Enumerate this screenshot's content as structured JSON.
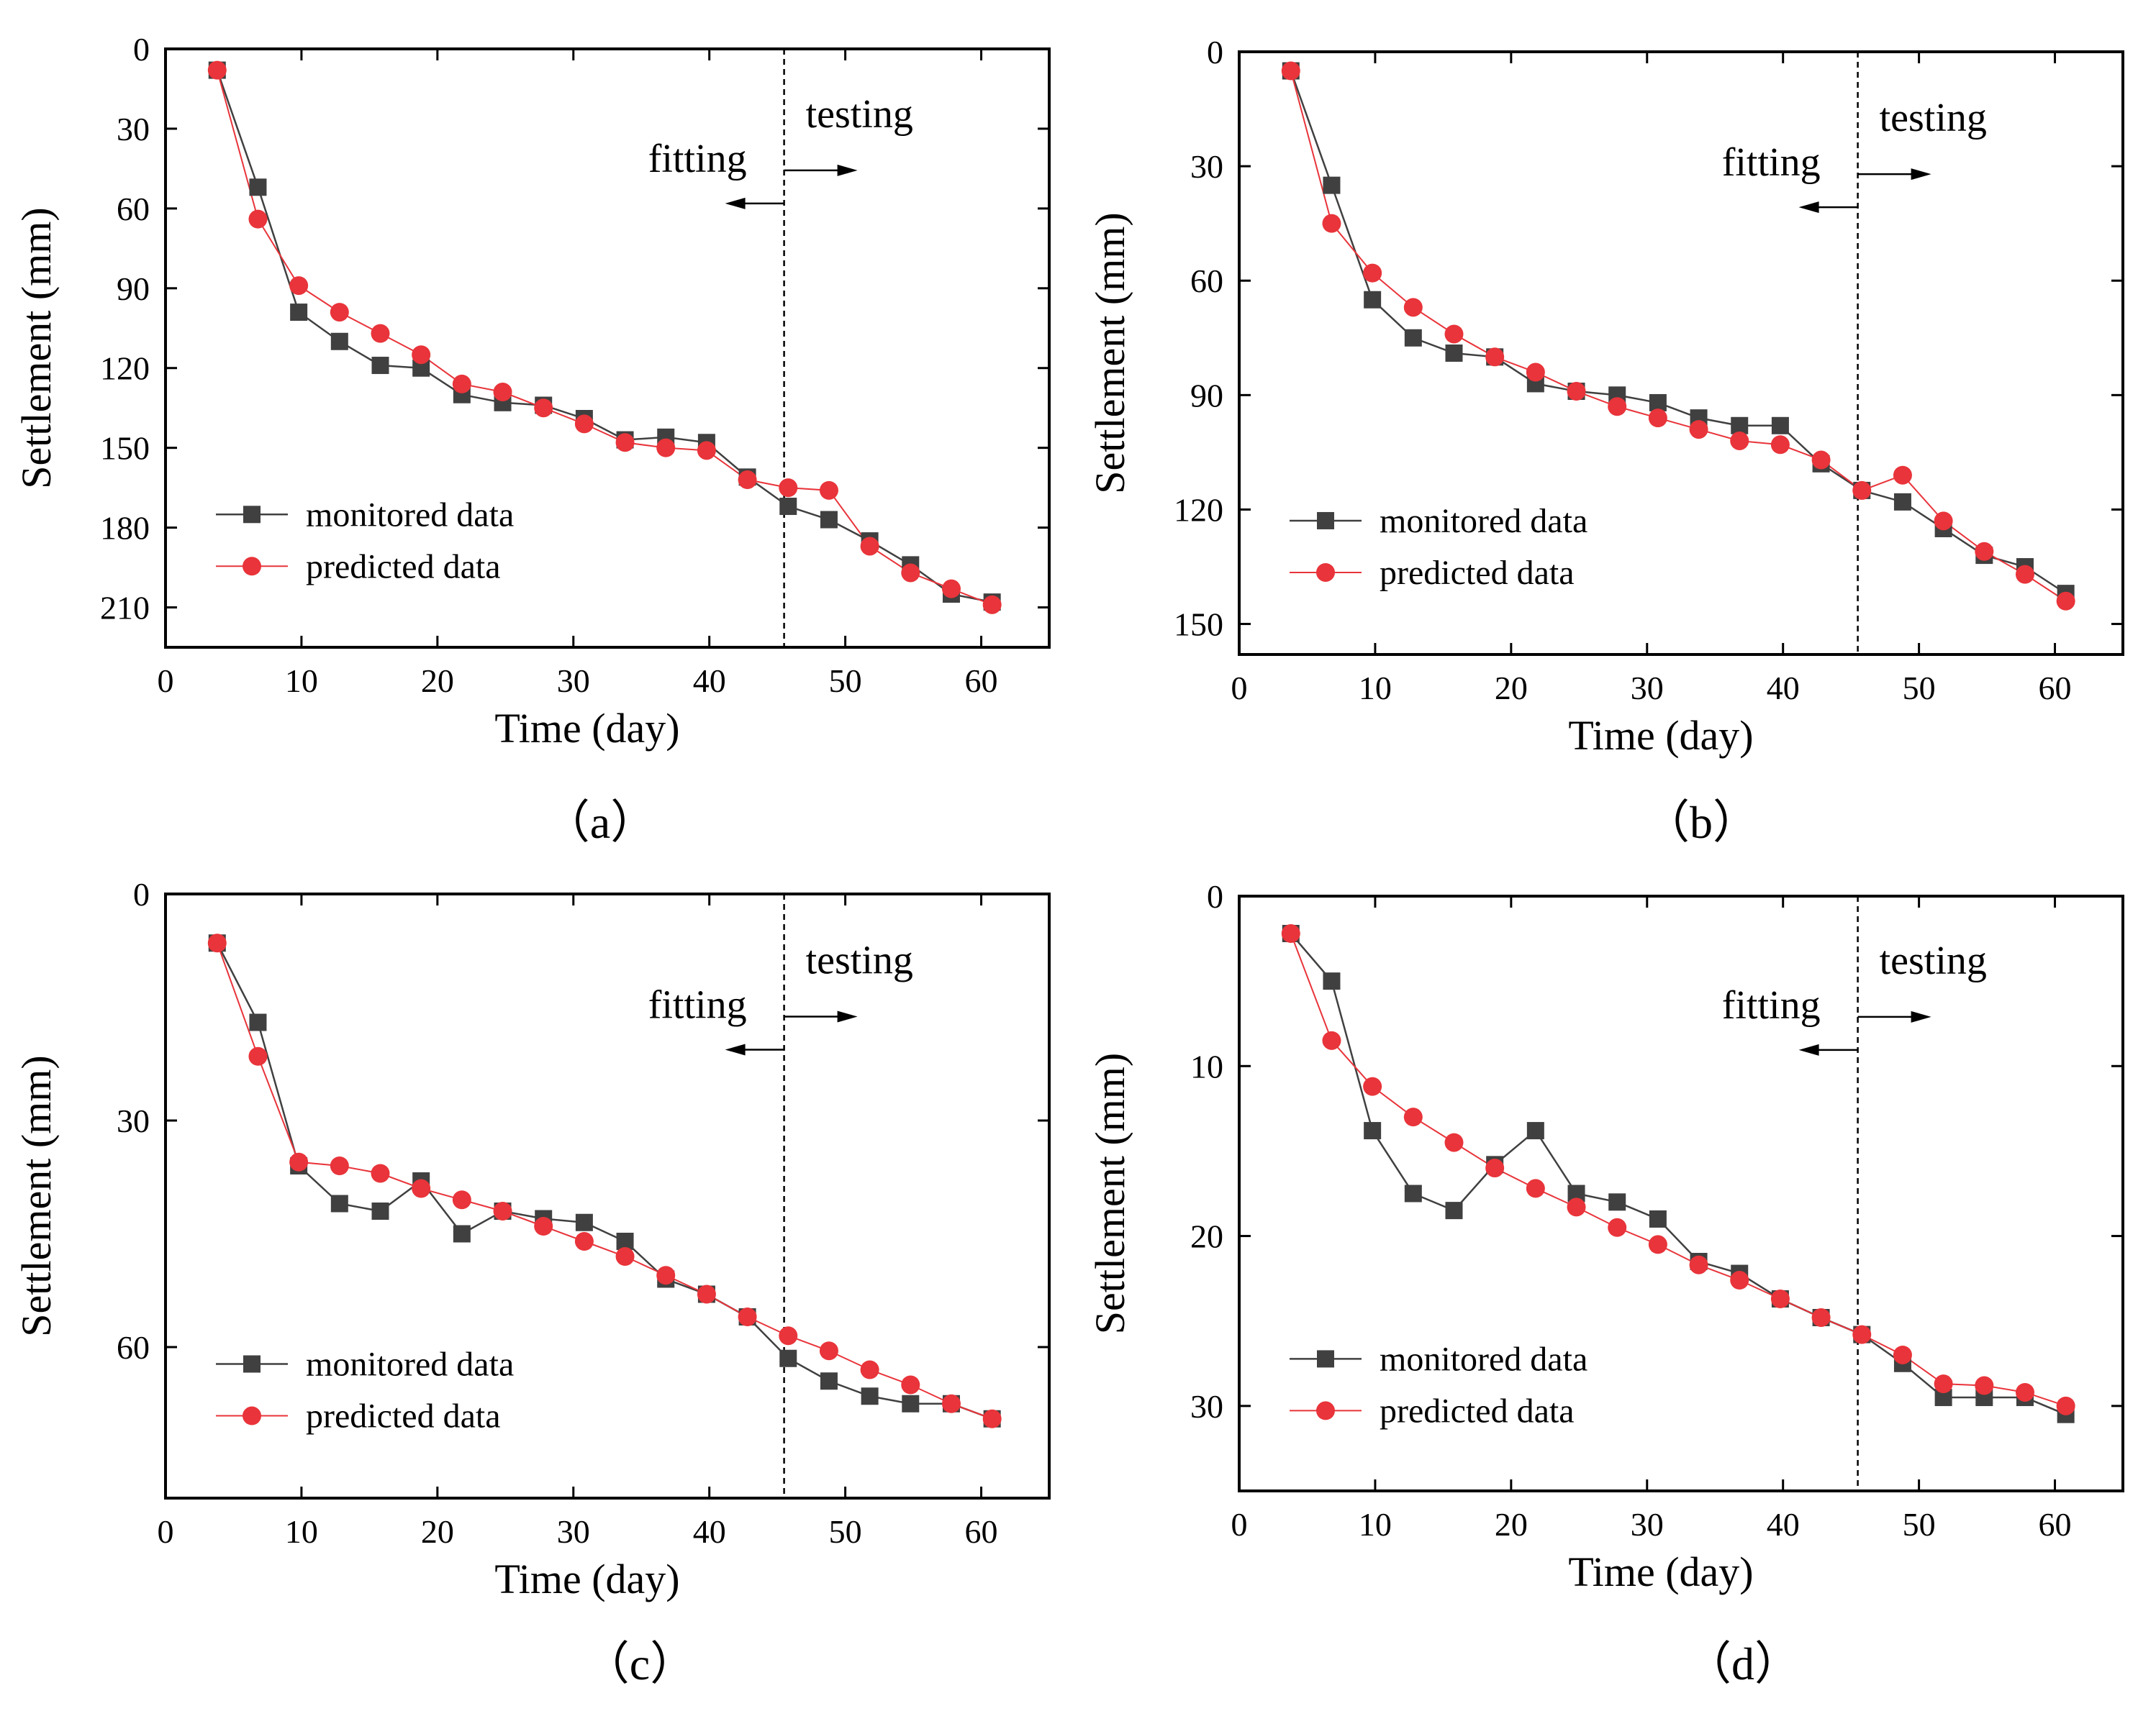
{
  "legend": {
    "monitored": "monitored data",
    "predicted": "predicted data"
  },
  "colors": {
    "monitored": "#404040",
    "predicted": "#e8343a",
    "axis": "#000000"
  },
  "chart_data": [
    {
      "type": "line",
      "panel_label": "（a）",
      "xlabel": "Time (day)",
      "ylabel": "Settlement (mm)",
      "xlim": [
        0,
        65
      ],
      "xticks": [
        0,
        10,
        20,
        30,
        40,
        50,
        60
      ],
      "ylim": [
        0,
        225
      ],
      "yticks": [
        0,
        30,
        60,
        90,
        120,
        150,
        180,
        210
      ],
      "y_inverted": true,
      "divider_x": 45.5,
      "fitting_label": "fitting",
      "testing_label": "testing",
      "legend_position": "lower-left",
      "x": [
        3.8,
        6.8,
        9.8,
        12.8,
        15.8,
        18.8,
        21.8,
        24.8,
        27.8,
        30.8,
        33.8,
        36.8,
        39.8,
        42.8,
        45.8,
        48.8,
        51.8,
        54.8,
        57.8,
        60.8
      ],
      "series": [
        {
          "name": "monitored data",
          "values": [
            8,
            52,
            99,
            110,
            119,
            120,
            130,
            133,
            134,
            139,
            147,
            146,
            148,
            161,
            172,
            177,
            185,
            194,
            205,
            208
          ]
        },
        {
          "name": "predicted data",
          "values": [
            8,
            64,
            89,
            99,
            107,
            115,
            126,
            129,
            135,
            141,
            148,
            150,
            151,
            162,
            165,
            166,
            187,
            197,
            203,
            209
          ]
        }
      ]
    },
    {
      "type": "line",
      "panel_label": "（b）",
      "xlabel": "Time (day)",
      "ylabel": "Settlement (mm)",
      "xlim": [
        0,
        65
      ],
      "xticks": [
        0,
        10,
        20,
        30,
        40,
        50,
        60
      ],
      "ylim": [
        0,
        158
      ],
      "yticks": [
        0,
        30,
        60,
        90,
        120,
        150
      ],
      "y_inverted": true,
      "divider_x": 45.5,
      "fitting_label": "fitting",
      "testing_label": "testing",
      "legend_position": "lower-left",
      "x": [
        3.8,
        6.8,
        9.8,
        12.8,
        15.8,
        18.8,
        21.8,
        24.8,
        27.8,
        30.8,
        33.8,
        36.8,
        39.8,
        42.8,
        45.8,
        48.8,
        51.8,
        54.8,
        57.8,
        60.8
      ],
      "series": [
        {
          "name": "monitored data",
          "values": [
            5,
            35,
            65,
            75,
            79,
            80,
            87,
            89,
            90,
            92,
            96,
            98,
            98,
            108,
            115,
            118,
            125,
            132,
            135,
            142
          ]
        },
        {
          "name": "predicted data",
          "values": [
            5,
            45,
            58,
            67,
            74,
            80,
            84,
            89,
            93,
            96,
            99,
            102,
            103,
            107,
            115,
            111,
            123,
            131,
            137,
            144
          ]
        }
      ]
    },
    {
      "type": "line",
      "panel_label": "（c）",
      "xlabel": "Time (day)",
      "ylabel": "Settlement (mm)",
      "xlim": [
        0,
        65
      ],
      "xticks": [
        0,
        10,
        20,
        30,
        40,
        50,
        60
      ],
      "ylim": [
        0,
        80
      ],
      "yticks": [
        0,
        30,
        60
      ],
      "y_inverted": true,
      "divider_x": 45.5,
      "fitting_label": "fitting",
      "testing_label": "testing",
      "legend_position": "lower-left",
      "x": [
        3.8,
        6.8,
        9.8,
        12.8,
        15.8,
        18.8,
        21.8,
        24.8,
        27.8,
        30.8,
        33.8,
        36.8,
        39.8,
        42.8,
        45.8,
        48.8,
        51.8,
        54.8,
        57.8,
        60.8
      ],
      "series": [
        {
          "name": "monitored data",
          "values": [
            6.5,
            17,
            36,
            41,
            42,
            38,
            45,
            42,
            43,
            43.5,
            46,
            51,
            53,
            56,
            61.5,
            64.5,
            66.5,
            67.5,
            67.5,
            69.5
          ]
        },
        {
          "name": "predicted data",
          "values": [
            6.5,
            21.5,
            35.5,
            36,
            37,
            39,
            40.5,
            42,
            44,
            46,
            48,
            50.5,
            53,
            56,
            58.5,
            60.5,
            63,
            65,
            67.5,
            69.5
          ]
        }
      ]
    },
    {
      "type": "line",
      "panel_label": "（d）",
      "xlabel": "Time (day)",
      "ylabel": "Settlement (mm)",
      "xlim": [
        0,
        65
      ],
      "xticks": [
        0,
        10,
        20,
        30,
        40,
        50,
        60
      ],
      "ylim": [
        0,
        35
      ],
      "yticks": [
        0,
        10,
        20,
        30
      ],
      "y_inverted": true,
      "divider_x": 45.5,
      "fitting_label": "fitting",
      "testing_label": "testing",
      "legend_position": "lower-left",
      "x": [
        3.8,
        6.8,
        9.8,
        12.8,
        15.8,
        18.8,
        21.8,
        24.8,
        27.8,
        30.8,
        33.8,
        36.8,
        39.8,
        42.8,
        45.8,
        48.8,
        51.8,
        54.8,
        57.8,
        60.8
      ],
      "series": [
        {
          "name": "monitored data",
          "values": [
            2.2,
            5,
            13.8,
            17.5,
            18.5,
            15.8,
            13.8,
            17.5,
            18,
            19,
            21.5,
            22.2,
            23.7,
            24.8,
            25.8,
            27.5,
            29.5,
            29.5,
            29.5,
            30.5
          ]
        },
        {
          "name": "predicted data",
          "values": [
            2.2,
            8.5,
            11.2,
            13,
            14.5,
            16,
            17.2,
            18.3,
            19.5,
            20.5,
            21.7,
            22.6,
            23.7,
            24.8,
            25.8,
            27,
            28.7,
            28.8,
            29.2,
            30
          ]
        }
      ]
    }
  ]
}
